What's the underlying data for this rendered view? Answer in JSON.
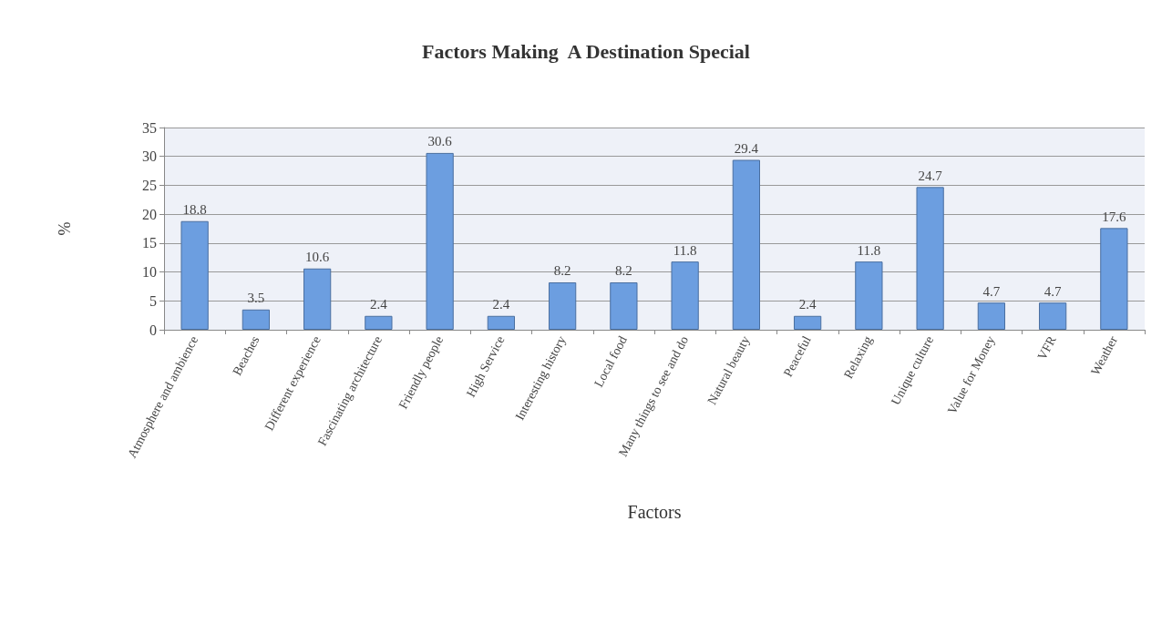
{
  "chart_data": {
    "type": "bar",
    "title": "Factors Making  A Destination Special",
    "xlabel": "Factors",
    "ylabel": "%",
    "categories": [
      "Atmosphere and ambience",
      "Beaches",
      "Different experience",
      "Fascinating architecture",
      "Friendly people",
      "High Service",
      "Interesting history",
      "Local food",
      "Many things to see and do",
      "Natural beauty",
      "Peaceful",
      "Relaxing",
      "Unique culture",
      "Value for Money",
      "VFR",
      "Weather"
    ],
    "values": [
      18.8,
      3.5,
      10.6,
      2.4,
      30.6,
      2.4,
      8.2,
      8.2,
      11.8,
      29.4,
      2.4,
      11.8,
      24.7,
      4.7,
      4.7,
      17.6
    ],
    "color": "#6c9ee0",
    "ylim": [
      0,
      35
    ],
    "yticks": [
      0,
      5,
      10,
      15,
      20,
      25,
      30,
      35
    ],
    "grid": "y",
    "data_labels": true
  }
}
